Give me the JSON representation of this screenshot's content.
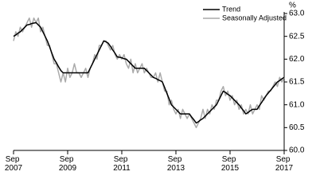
{
  "chart_data": {
    "type": "line",
    "y_label": "%",
    "categories": [
      "Sep 2007",
      null,
      null,
      null,
      null,
      null,
      null,
      null,
      null,
      null,
      null,
      null,
      null,
      null,
      null,
      null,
      null,
      null,
      null,
      null,
      null,
      null,
      null,
      null,
      "Sep 2009",
      null,
      null,
      null,
      null,
      null,
      null,
      null,
      null,
      null,
      null,
      null,
      null,
      null,
      null,
      null,
      null,
      null,
      null,
      null,
      null,
      null,
      null,
      null,
      "Sep 2011",
      null,
      null,
      null,
      null,
      null,
      null,
      null,
      null,
      null,
      null,
      null,
      null,
      null,
      null,
      null,
      null,
      null,
      null,
      null,
      null,
      null,
      null,
      null,
      "Sep 2013",
      null,
      null,
      null,
      null,
      null,
      null,
      null,
      null,
      null,
      null,
      null,
      null,
      null,
      null,
      null,
      null,
      null,
      null,
      null,
      null,
      null,
      null,
      null,
      "Sep 2015",
      null,
      null,
      null,
      null,
      null,
      null,
      null,
      null,
      null,
      null,
      null,
      null,
      null,
      null,
      null,
      null,
      null,
      null,
      null,
      null,
      null,
      null,
      null,
      "Sep 2017"
    ],
    "series": [
      {
        "name": "Trend",
        "color": "#000000",
        "values": [
          62.5,
          62.53,
          62.57,
          62.6,
          62.65,
          62.7,
          62.75,
          62.76,
          62.78,
          62.79,
          62.8,
          62.75,
          62.7,
          62.6,
          62.5,
          62.4,
          62.27,
          62.13,
          62.0,
          61.92,
          61.83,
          61.75,
          61.7,
          61.7,
          61.7,
          61.7,
          61.7,
          61.7,
          61.7,
          61.7,
          61.7,
          61.7,
          61.7,
          61.7,
          61.8,
          61.9,
          62.0,
          62.1,
          62.2,
          62.3,
          62.4,
          62.38,
          62.35,
          62.28,
          62.2,
          62.13,
          62.05,
          62.04,
          62.03,
          62.01,
          62.0,
          61.95,
          61.9,
          61.85,
          61.8,
          61.8,
          61.8,
          61.8,
          61.8,
          61.75,
          61.7,
          61.65,
          61.6,
          61.58,
          61.55,
          61.53,
          61.5,
          61.38,
          61.25,
          61.13,
          61.0,
          60.95,
          60.9,
          60.85,
          60.8,
          60.8,
          60.8,
          60.8,
          60.8,
          60.73,
          60.67,
          60.6,
          60.63,
          60.67,
          60.7,
          60.75,
          60.8,
          60.85,
          60.9,
          60.95,
          61.0,
          61.1,
          61.2,
          61.3,
          61.27,
          61.23,
          61.2,
          61.15,
          61.1,
          61.05,
          61.0,
          60.93,
          60.87,
          60.8,
          60.83,
          60.87,
          60.9,
          60.9,
          60.9,
          60.98,
          61.05,
          61.13,
          61.2,
          61.26,
          61.32,
          61.38,
          61.44,
          61.5,
          61.53,
          61.57,
          61.6
        ]
      },
      {
        "name": "Seasonally Adjusted",
        "color": "#aaaaaa",
        "values": [
          62.4,
          62.6,
          62.5,
          62.7,
          62.6,
          62.7,
          62.8,
          62.9,
          62.7,
          62.9,
          62.8,
          62.9,
          62.6,
          62.7,
          62.5,
          62.3,
          62.3,
          62.1,
          61.9,
          61.9,
          61.7,
          61.5,
          61.7,
          61.5,
          61.8,
          61.6,
          61.7,
          61.9,
          61.7,
          61.7,
          61.6,
          61.7,
          61.8,
          61.6,
          61.8,
          61.9,
          62.1,
          62.0,
          62.3,
          62.3,
          62.4,
          62.4,
          62.3,
          62.2,
          62.3,
          62.1,
          62.0,
          62.1,
          62.0,
          62.1,
          61.9,
          61.8,
          62.0,
          61.7,
          61.9,
          61.7,
          61.8,
          61.9,
          61.7,
          61.8,
          61.7,
          61.6,
          61.6,
          61.7,
          61.5,
          61.7,
          61.5,
          61.3,
          61.3,
          61.0,
          61.1,
          60.9,
          60.8,
          60.9,
          60.7,
          60.9,
          60.8,
          60.7,
          60.8,
          60.7,
          60.6,
          60.5,
          60.6,
          60.7,
          60.9,
          60.7,
          60.9,
          60.8,
          61.0,
          60.9,
          61.1,
          61.1,
          61.3,
          61.4,
          61.2,
          61.3,
          61.1,
          61.2,
          61.0,
          61.1,
          60.9,
          61.0,
          60.8,
          60.9,
          60.8,
          61.0,
          60.8,
          60.9,
          61.0,
          60.9,
          61.2,
          61.1,
          61.2,
          61.3,
          61.3,
          61.4,
          61.5,
          61.4,
          61.6,
          61.5,
          61.6
        ]
      }
    ],
    "ylim": [
      60.0,
      63.0
    ],
    "yticks": [
      {
        "value": 60,
        "label": "60.0"
      },
      60.5,
      {
        "value": 61,
        "label": "61.0"
      },
      61.5,
      {
        "value": 62,
        "label": "62.0"
      },
      62.5,
      {
        "value": 63,
        "label": "63.0"
      }
    ],
    "y_axis_side": "right",
    "grid": false,
    "legend": "top-right"
  }
}
